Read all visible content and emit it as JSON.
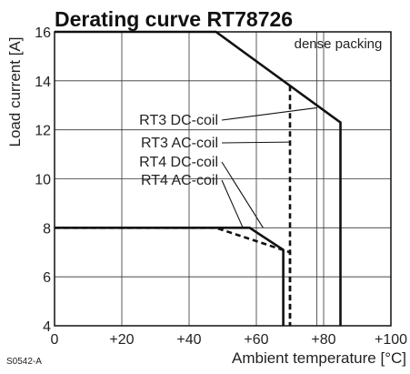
{
  "chart_data": {
    "type": "line",
    "title": "Derating curve RT78726",
    "xlabel": "Ambient temperature [°C]",
    "ylabel": "Load current [A]",
    "xlim": [
      0,
      100
    ],
    "ylim": [
      4,
      16
    ],
    "x_ticks": [
      0,
      20,
      40,
      60,
      80,
      100
    ],
    "x_tick_labels": [
      "0",
      "+20",
      "+40",
      "+60",
      "+80",
      "+100"
    ],
    "y_ticks": [
      4,
      6,
      8,
      10,
      12,
      14,
      16
    ],
    "y_tick_labels": [
      "4",
      "6",
      "8",
      "10",
      "12",
      "14",
      "16"
    ],
    "grid": true,
    "region_label": "dense packing",
    "figure_code": "S0542-A",
    "series": [
      {
        "name": "RT3 DC-coil",
        "style": "solid",
        "x": [
          0,
          48,
          85,
          85
        ],
        "y": [
          16,
          16,
          12.3,
          4
        ]
      },
      {
        "name": "RT3 AC-coil",
        "style": "dashed",
        "x": [
          70,
          70
        ],
        "y": [
          13.8,
          4
        ]
      },
      {
        "name": "RT4 DC-coil",
        "style": "solid",
        "x": [
          0,
          58,
          68,
          68
        ],
        "y": [
          8,
          8,
          7.1,
          4
        ]
      },
      {
        "name": "RT4 AC-coil",
        "style": "dashed",
        "x": [
          0,
          48,
          70,
          70
        ],
        "y": [
          8,
          8,
          7.0,
          4
        ]
      }
    ],
    "annotations": [
      {
        "text": "RT3 DC-coil",
        "x": 78,
        "y": 12.9
      },
      {
        "text": "RT3 AC-coil",
        "x": 70,
        "y": 11.5
      },
      {
        "text": "RT4 DC-coil",
        "x": 62,
        "y": 8
      },
      {
        "text": "RT4 AC-coil",
        "x": 56,
        "y": 8
      }
    ]
  }
}
